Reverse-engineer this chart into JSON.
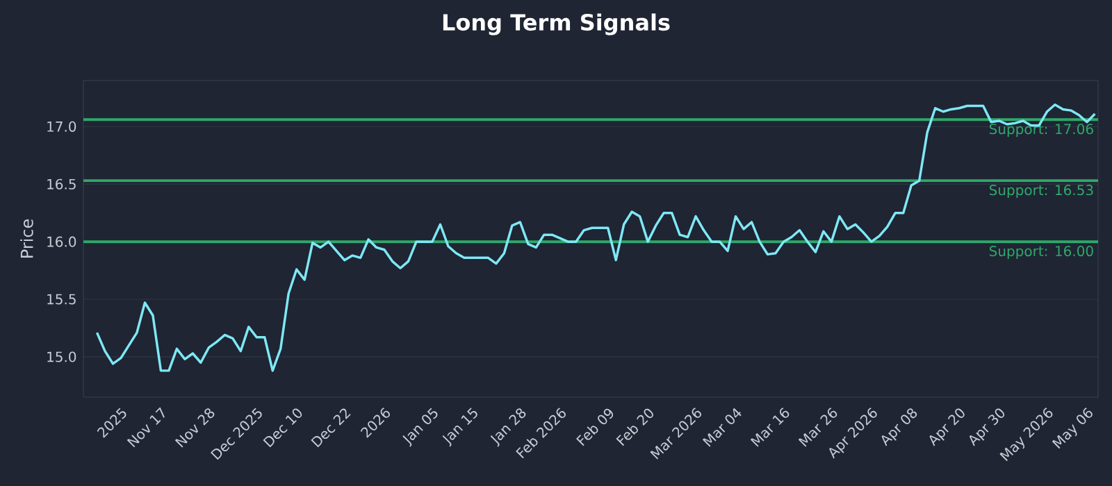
{
  "chart_data": {
    "type": "line",
    "title": "Long Term Signals",
    "ylabel": "Price",
    "categories": [
      null,
      null,
      null,
      "2025",
      null,
      null,
      null,
      null,
      "Nov 17",
      null,
      null,
      null,
      null,
      null,
      "Nov 28",
      null,
      null,
      null,
      null,
      null,
      "Dec 2025",
      null,
      null,
      null,
      null,
      "Dec 10",
      null,
      null,
      null,
      null,
      null,
      "Dec 22",
      null,
      null,
      null,
      null,
      "2026",
      null,
      null,
      null,
      null,
      null,
      "Jan 05",
      null,
      null,
      null,
      null,
      "Jan 15",
      null,
      null,
      null,
      null,
      null,
      "Jan 28",
      null,
      null,
      null,
      null,
      "Feb 2026",
      null,
      null,
      null,
      null,
      null,
      "Feb 09",
      null,
      null,
      null,
      null,
      "Feb 20",
      null,
      null,
      null,
      null,
      null,
      "Mar 2026",
      null,
      null,
      null,
      null,
      "Mar 04",
      null,
      null,
      null,
      null,
      null,
      "Mar 16",
      null,
      null,
      null,
      null,
      null,
      "Mar 26",
      null,
      null,
      null,
      null,
      "Apr 2026",
      null,
      null,
      null,
      null,
      "Apr 08",
      null,
      null,
      null,
      null,
      null,
      "Apr 20",
      null,
      null,
      null,
      null,
      "Apr 30",
      null,
      null,
      null,
      null,
      null,
      "May 2026",
      null,
      null,
      null,
      null,
      "May 06",
      null
    ],
    "series": [
      {
        "color": "#7ee8f5",
        "values": [
          15.21,
          15.05,
          14.94,
          14.99,
          15.1,
          15.21,
          15.47,
          15.36,
          14.88,
          14.88,
          15.07,
          14.98,
          15.03,
          14.95,
          15.08,
          15.13,
          15.19,
          15.16,
          15.05,
          15.26,
          15.17,
          15.17,
          14.88,
          15.07,
          15.55,
          15.76,
          15.67,
          15.99,
          15.95,
          16.0,
          15.92,
          15.84,
          15.88,
          15.86,
          16.02,
          15.95,
          15.93,
          15.83,
          15.77,
          15.83,
          16.0,
          16.0,
          16.0,
          16.15,
          15.96,
          15.9,
          15.86,
          15.86,
          15.86,
          15.86,
          15.81,
          15.9,
          16.14,
          16.17,
          15.98,
          15.95,
          16.06,
          16.06,
          16.03,
          16.0,
          16.0,
          16.1,
          16.12,
          16.12,
          16.12,
          15.84,
          16.15,
          16.26,
          16.22,
          16.0,
          16.14,
          16.25,
          16.25,
          16.06,
          16.04,
          16.22,
          16.1,
          16.0,
          16.0,
          15.92,
          16.22,
          16.11,
          16.17,
          16.0,
          15.89,
          15.9,
          16.0,
          16.04,
          16.1,
          16.0,
          15.91,
          16.09,
          16.0,
          16.22,
          16.11,
          16.15,
          16.08,
          16.0,
          16.05,
          16.13,
          16.25,
          16.25,
          16.49,
          16.53,
          16.95,
          17.16,
          17.13,
          17.15,
          17.16,
          17.18,
          17.18,
          17.18,
          17.04,
          17.05,
          17.02,
          17.03,
          17.05,
          17.01,
          17.01,
          17.13,
          17.19,
          17.15,
          17.14,
          17.1,
          17.04,
          17.11
        ]
      }
    ],
    "ylim": [
      14.65,
      17.4
    ],
    "yticks": [
      {
        "value": 15,
        "label": "15.0"
      },
      15.5,
      {
        "value": 16,
        "label": "16.0"
      },
      16.5,
      {
        "value": 17,
        "label": "17.0"
      }
    ],
    "grid": "y",
    "marker": "none",
    "line_style": "solid",
    "ref_lines": [
      {
        "axis": "y",
        "value": 17.06,
        "label": "Support: 17.06",
        "color": "#2fa86a"
      },
      {
        "axis": "y",
        "value": 16.53,
        "label": "Support: 16.53",
        "color": "#2fa86a"
      },
      {
        "axis": "y",
        "value": 16.0,
        "label": "Support: 16.00",
        "color": "#2fa86a"
      }
    ]
  }
}
